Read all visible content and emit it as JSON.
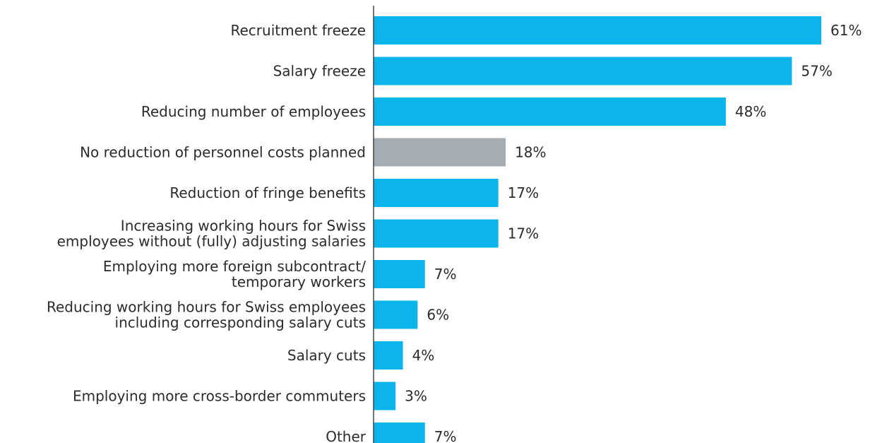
{
  "chart_data": {
    "type": "bar",
    "orientation": "horizontal",
    "title": "",
    "xlabel": "",
    "ylabel": "",
    "xlim": [
      0,
      61
    ],
    "grid": false,
    "legend": "none",
    "unit": "%",
    "colors": {
      "default": "#0bb4eb",
      "highlight": "#a6adb2",
      "axis": "#444444",
      "text": "#2b2b2b"
    },
    "categories": [
      [
        "Recruitment freeze"
      ],
      [
        "Salary freeze"
      ],
      [
        "Reducing number of employees"
      ],
      [
        "No reduction of personnel costs planned"
      ],
      [
        "Reduction of fringe benefits"
      ],
      [
        "Increasing working hours for Swiss",
        "employees without (fully) adjusting salaries"
      ],
      [
        "Employing more foreign subcontract/",
        "temporary workers"
      ],
      [
        "Reducing working hours for Swiss employees",
        "including corresponding salary cuts"
      ],
      [
        "Salary cuts"
      ],
      [
        "Employing more cross-border commuters"
      ],
      [
        "Other"
      ]
    ],
    "values": [
      61,
      57,
      48,
      18,
      17,
      17,
      7,
      6,
      4,
      3,
      7
    ],
    "value_labels": [
      "61%",
      "57%",
      "48%",
      "18%",
      "17%",
      "17%",
      "7%",
      "6%",
      "4%",
      "3%",
      "7%"
    ],
    "highlight_index": [
      3
    ]
  }
}
